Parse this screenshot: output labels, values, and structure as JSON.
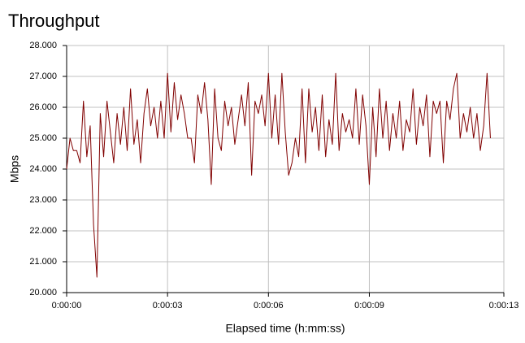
{
  "chart_data": {
    "type": "line",
    "title": "Throughput",
    "xlabel": "Elapsed time (h:mm:ss)",
    "ylabel": "Mbps",
    "x": [
      0,
      0.1,
      0.2,
      0.3,
      0.4,
      0.5,
      0.6,
      0.7,
      0.8,
      0.9,
      1,
      1.1,
      1.2,
      1.3,
      1.4,
      1.5,
      1.6,
      1.7,
      1.8,
      1.9,
      2,
      2.1,
      2.2,
      2.3,
      2.4,
      2.5,
      2.6,
      2.7,
      2.8,
      2.9,
      3,
      3.1,
      3.2,
      3.3,
      3.4,
      3.5,
      3.6,
      3.7,
      3.8,
      3.9,
      4,
      4.1,
      4.2,
      4.3,
      4.4,
      4.5,
      4.6,
      4.7,
      4.8,
      4.9,
      5,
      5.1,
      5.2,
      5.3,
      5.4,
      5.5,
      5.6,
      5.7,
      5.8,
      5.9,
      6,
      6.1,
      6.2,
      6.3,
      6.4,
      6.5,
      6.6,
      6.7,
      6.8,
      6.9,
      7,
      7.1,
      7.2,
      7.3,
      7.4,
      7.5,
      7.6,
      7.7,
      7.8,
      7.9,
      8,
      8.1,
      8.2,
      8.3,
      8.4,
      8.5,
      8.6,
      8.7,
      8.8,
      8.9,
      9,
      9.1,
      9.2,
      9.3,
      9.4,
      9.5,
      9.6,
      9.7,
      9.8,
      9.9,
      10,
      10.1,
      10.2,
      10.3,
      10.4,
      10.5,
      10.6,
      10.7,
      10.8,
      10.9,
      11,
      11.1,
      11.2,
      11.3,
      11.4,
      11.5,
      11.6,
      11.7,
      11.8,
      11.9,
      12,
      12.1,
      12.2,
      12.3,
      12.4,
      12.5,
      12.6
    ],
    "series": [
      {
        "name": "Throughput",
        "color": "#800000",
        "values": [
          24.0,
          25.0,
          24.6,
          24.6,
          24.2,
          26.2,
          24.4,
          25.4,
          22.2,
          20.5,
          25.8,
          24.4,
          26.2,
          25.2,
          24.2,
          25.8,
          24.8,
          26.0,
          24.6,
          26.6,
          24.8,
          25.6,
          24.2,
          25.8,
          26.6,
          25.4,
          26.0,
          25.0,
          26.2,
          25.0,
          27.1,
          25.2,
          26.8,
          25.6,
          26.4,
          25.8,
          25.0,
          25.0,
          24.2,
          26.4,
          25.8,
          26.8,
          25.6,
          23.5,
          26.6,
          25.0,
          24.6,
          26.2,
          25.4,
          26.0,
          24.8,
          25.6,
          26.4,
          25.4,
          26.8,
          23.8,
          26.2,
          25.8,
          26.4,
          25.4,
          27.1,
          25.0,
          26.4,
          24.8,
          27.1,
          25.2,
          23.8,
          24.2,
          25.0,
          24.4,
          26.6,
          24.2,
          26.6,
          25.2,
          26.0,
          24.6,
          26.4,
          24.4,
          25.6,
          24.8,
          27.1,
          24.6,
          25.8,
          25.2,
          25.6,
          25.0,
          26.6,
          24.8,
          26.4,
          25.4,
          23.5,
          26.0,
          24.4,
          26.6,
          25.0,
          26.2,
          24.6,
          25.8,
          25.0,
          26.2,
          24.6,
          25.6,
          25.2,
          26.6,
          24.8,
          26.0,
          25.4,
          26.4,
          24.4,
          26.2,
          25.8,
          26.2,
          24.2,
          26.2,
          25.6,
          26.6,
          27.1,
          25.0,
          25.8,
          25.2,
          26.0,
          25.0,
          25.8,
          24.6,
          25.4,
          27.1,
          25.0
        ]
      }
    ],
    "xlim": [
      0,
      13
    ],
    "xticks": [
      {
        "value": 0,
        "label": "0:00:00"
      },
      {
        "value": 3,
        "label": "0:00:03"
      },
      {
        "value": 6,
        "label": "0:00:06"
      },
      {
        "value": 9,
        "label": "0:00:09"
      },
      {
        "value": 13,
        "label": "0:00:13"
      }
    ],
    "ylim": [
      20,
      28
    ],
    "yticks": [
      {
        "value": 20,
        "label": "20.000"
      },
      {
        "value": 21,
        "label": "21.000"
      },
      {
        "value": 22,
        "label": "22.000"
      },
      {
        "value": 23,
        "label": "23.000"
      },
      {
        "value": 24,
        "label": "24.000"
      },
      {
        "value": 25,
        "label": "25.000"
      },
      {
        "value": 26,
        "label": "26.000"
      },
      {
        "value": 27,
        "label": "27.000"
      },
      {
        "value": 28,
        "label": "28.000"
      }
    ],
    "grid": true
  }
}
